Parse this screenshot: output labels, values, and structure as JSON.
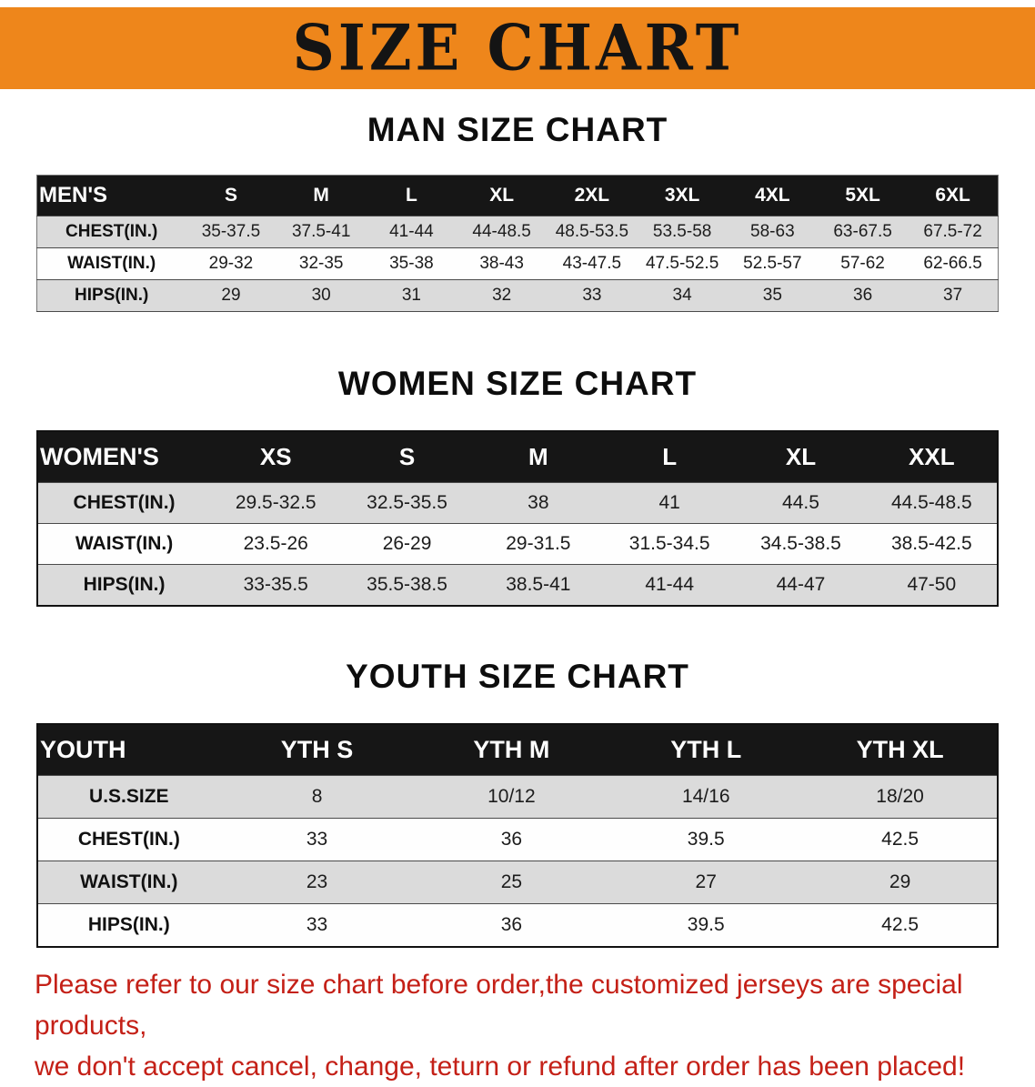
{
  "banner": {
    "title": "SIZE CHART",
    "bg_color": "#EE861B"
  },
  "sections": [
    {
      "heading": "MAN SIZE CHART",
      "table": {
        "header": [
          "MEN'S",
          "S",
          "M",
          "L",
          "XL",
          "2XL",
          "3XL",
          "4XL",
          "5XL",
          "6XL"
        ],
        "rows": [
          [
            "CHEST(IN.)",
            "35-37.5",
            "37.5-41",
            "41-44",
            "44-48.5",
            "48.5-53.5",
            "53.5-58",
            "58-63",
            "63-67.5",
            "67.5-72"
          ],
          [
            "WAIST(IN.)",
            "29-32",
            "32-35",
            "35-38",
            "38-43",
            "43-47.5",
            "47.5-52.5",
            "52.5-57",
            "57-62",
            "62-66.5"
          ],
          [
            "HIPS(IN.)",
            "29",
            "30",
            "31",
            "32",
            "33",
            "34",
            "35",
            "36",
            "37"
          ]
        ]
      }
    },
    {
      "heading": "WOMEN SIZE CHART",
      "table": {
        "header": [
          "WOMEN'S",
          "XS",
          "S",
          "M",
          "L",
          "XL",
          "XXL"
        ],
        "rows": [
          [
            "CHEST(IN.)",
            "29.5-32.5",
            "32.5-35.5",
            "38",
            "41",
            "44.5",
            "44.5-48.5"
          ],
          [
            "WAIST(IN.)",
            "23.5-26",
            "26-29",
            "29-31.5",
            "31.5-34.5",
            "34.5-38.5",
            "38.5-42.5"
          ],
          [
            "HIPS(IN.)",
            "33-35.5",
            "35.5-38.5",
            "38.5-41",
            "41-44",
            "44-47",
            "47-50"
          ]
        ]
      }
    },
    {
      "heading": "YOUTH SIZE CHART",
      "table": {
        "header": [
          "YOUTH",
          "YTH S",
          "YTH M",
          "YTH L",
          "YTH XL"
        ],
        "rows": [
          [
            "U.S.SIZE",
            "8",
            "10/12",
            "14/16",
            "18/20"
          ],
          [
            "CHEST(IN.)",
            "33",
            "36",
            "39.5",
            "42.5"
          ],
          [
            "WAIST(IN.)",
            "23",
            "25",
            "27",
            "29"
          ],
          [
            "HIPS(IN.)",
            "33",
            "36",
            "39.5",
            "42.5"
          ]
        ]
      }
    }
  ],
  "notice": {
    "color": "#C42017",
    "lines": [
      "Please refer to our size chart before order,the customized jerseys are special products,",
      "we don't accept cancel, change, teturn or refund after order has been placed!"
    ]
  }
}
